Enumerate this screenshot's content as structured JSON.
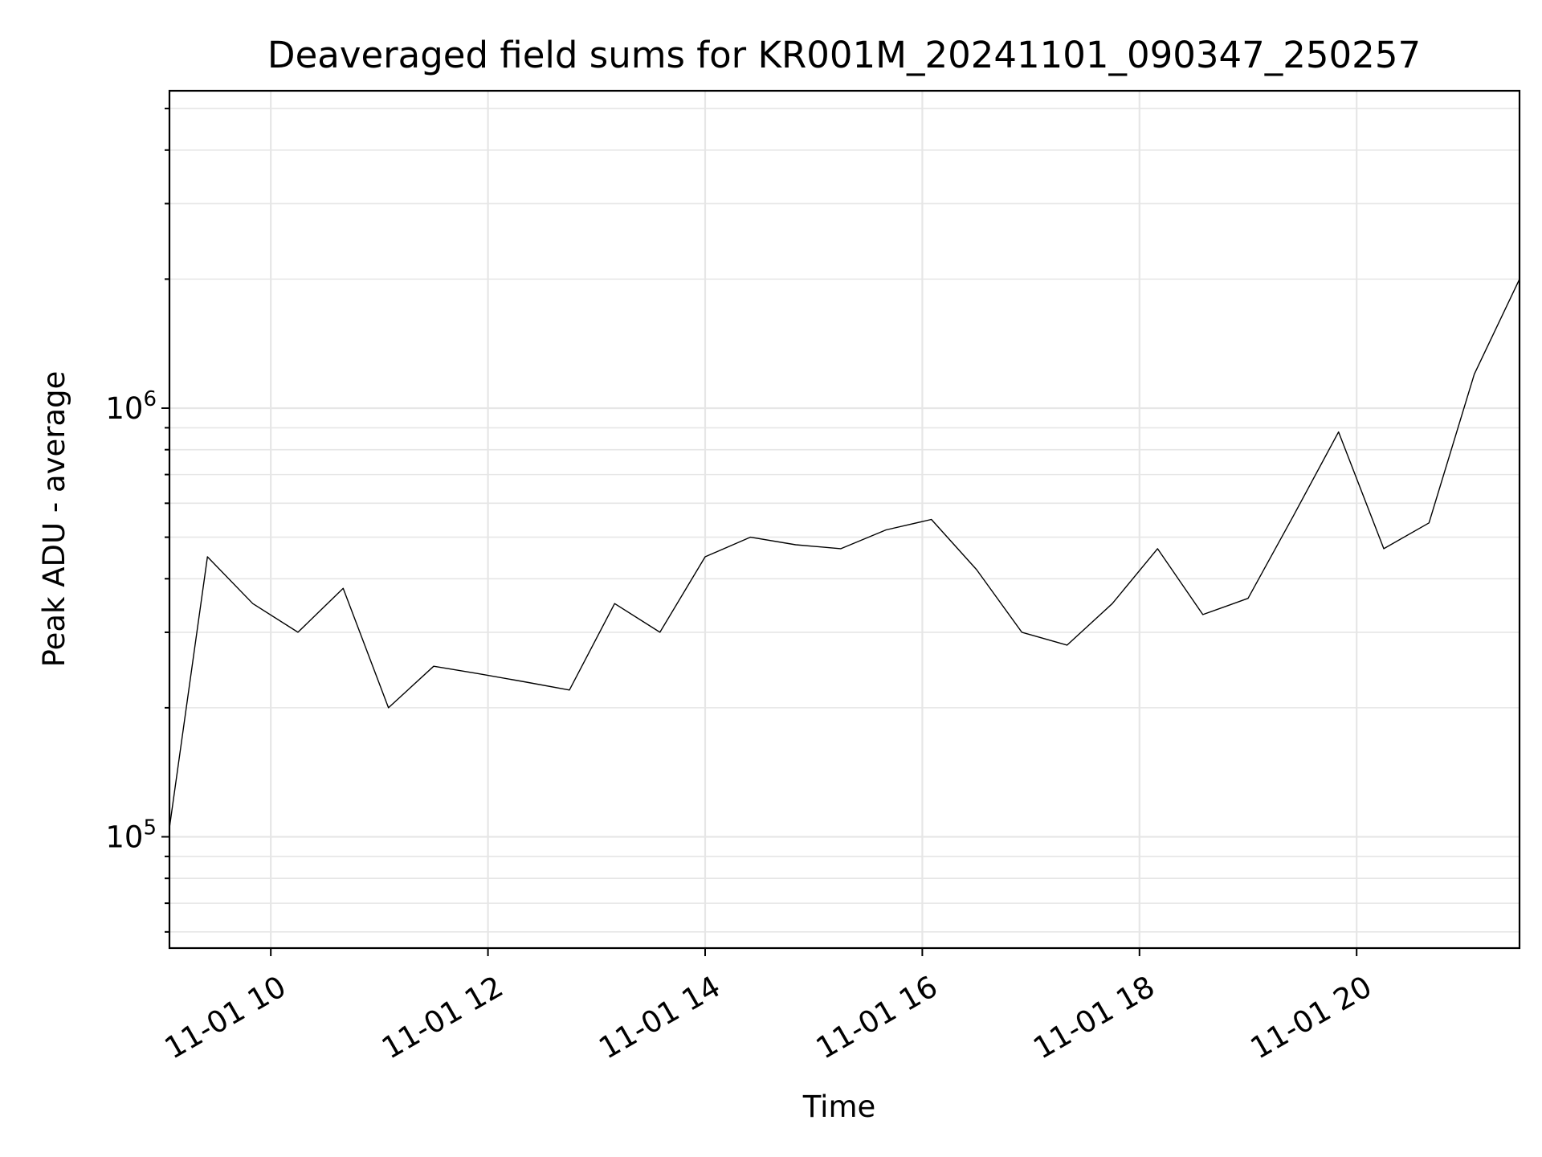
{
  "chart_data": {
    "type": "line",
    "title": "Deaveraged field sums for KR001M_20241101_090347_250257",
    "xlabel": "Time",
    "ylabel": "Peak ADU - average",
    "x_range": [
      "11-01 09:04",
      "11-01 21:30"
    ],
    "x_tick_labels": [
      "11-01 10",
      "11-01 12",
      "11-01 14",
      "11-01 16",
      "11-01 18",
      "11-01 20"
    ],
    "y_scale": "log",
    "ylim": [
      55000,
      5500000
    ],
    "y_tick_labels": [
      {
        "base": "10",
        "exp": "5",
        "value": 100000
      },
      {
        "base": "10",
        "exp": "6",
        "value": 1000000
      }
    ],
    "grid": true,
    "line_color": "#000000",
    "series": [
      {
        "x": [
          "11-01 09:04",
          "11-01 09:25",
          "11-01 09:50",
          "11-01 10:15",
          "11-01 10:40",
          "11-01 11:05",
          "11-01 11:30",
          "11-01 11:55",
          "11-01 12:20",
          "11-01 12:45",
          "11-01 13:10",
          "11-01 13:35",
          "11-01 14:00",
          "11-01 14:25",
          "11-01 14:50",
          "11-01 15:15",
          "11-01 15:40",
          "11-01 16:05",
          "11-01 16:30",
          "11-01 16:55",
          "11-01 17:20",
          "11-01 17:45",
          "11-01 18:10",
          "11-01 18:35",
          "11-01 19:00",
          "11-01 19:25",
          "11-01 19:50",
          "11-01 20:15",
          "11-01 20:40",
          "11-01 21:05",
          "11-01 21:30"
        ],
        "y": [
          105000,
          450000,
          350000,
          300000,
          380000,
          200000,
          250000,
          240000,
          230000,
          220000,
          350000,
          300000,
          450000,
          500000,
          480000,
          470000,
          520000,
          550000,
          420000,
          300000,
          280000,
          350000,
          470000,
          330000,
          360000,
          560000,
          880000,
          470000,
          540000,
          1200000,
          2000000
        ]
      }
    ]
  }
}
